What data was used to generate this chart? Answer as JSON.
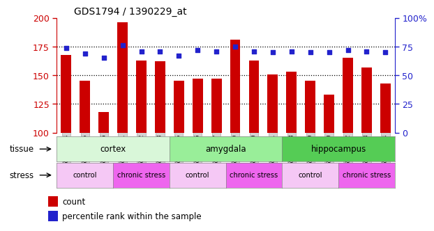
{
  "title": "GDS1794 / 1390229_at",
  "samples": [
    "GSM53314",
    "GSM53315",
    "GSM53316",
    "GSM53311",
    "GSM53312",
    "GSM53313",
    "GSM53305",
    "GSM53306",
    "GSM53307",
    "GSM53299",
    "GSM53300",
    "GSM53301",
    "GSM53308",
    "GSM53309",
    "GSM53310",
    "GSM53302",
    "GSM53303",
    "GSM53304"
  ],
  "counts": [
    168,
    145,
    118,
    196,
    163,
    162,
    145,
    147,
    147,
    181,
    163,
    151,
    153,
    145,
    133,
    165,
    157,
    143
  ],
  "percentiles": [
    74,
    69,
    65,
    76,
    71,
    71,
    67,
    72,
    71,
    75,
    71,
    70,
    71,
    70,
    70,
    72,
    71,
    70
  ],
  "bar_color": "#cc0000",
  "dot_color": "#2222cc",
  "ylim_left": [
    100,
    200
  ],
  "ylim_right": [
    0,
    100
  ],
  "yticks_left": [
    100,
    125,
    150,
    175,
    200
  ],
  "yticks_right": [
    0,
    25,
    50,
    75,
    100
  ],
  "grid_lines": [
    125,
    150,
    175
  ],
  "tissue_groups": [
    {
      "label": "cortex",
      "start": 0,
      "end": 6,
      "color": "#d9f7d9"
    },
    {
      "label": "amygdala",
      "start": 6,
      "end": 12,
      "color": "#99ee99"
    },
    {
      "label": "hippocampus",
      "start": 12,
      "end": 18,
      "color": "#55cc55"
    }
  ],
  "stress_groups": [
    {
      "label": "control",
      "start": 0,
      "end": 3,
      "color": "#f5c8f5"
    },
    {
      "label": "chronic stress",
      "start": 3,
      "end": 6,
      "color": "#ee66ee"
    },
    {
      "label": "control",
      "start": 6,
      "end": 9,
      "color": "#f5c8f5"
    },
    {
      "label": "chronic stress",
      "start": 9,
      "end": 12,
      "color": "#ee66ee"
    },
    {
      "label": "control",
      "start": 12,
      "end": 15,
      "color": "#f5c8f5"
    },
    {
      "label": "chronic stress",
      "start": 15,
      "end": 18,
      "color": "#ee66ee"
    }
  ],
  "tissue_label": "tissue",
  "stress_label": "stress",
  "legend_count": "count",
  "legend_pct": "percentile rank within the sample",
  "tick_bg": "#d4d4d4"
}
